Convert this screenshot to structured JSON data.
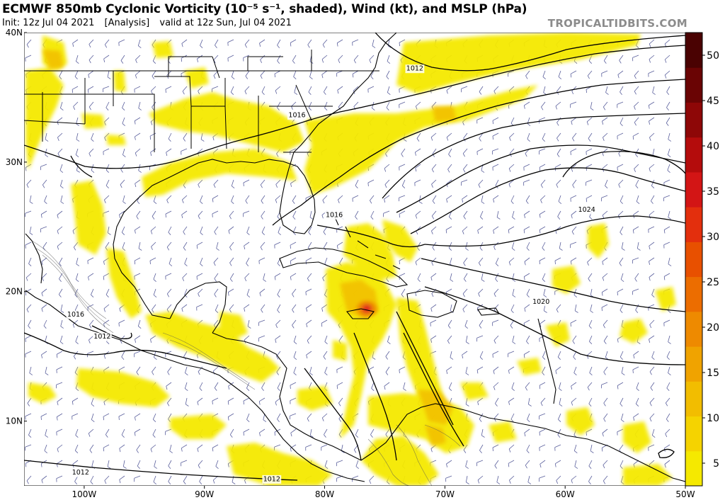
{
  "header": {
    "title": "ECMWF 850mb Cyclonic Vorticity (10⁻⁵ s⁻¹, shaded), Wind (kt), and MSLP (hPa)",
    "init": "Init: 12z Jul 04 2021",
    "analysis": "[Analysis]",
    "valid": "valid at 12z Sun, Jul 04 2021",
    "brand": "TROPICALTIDBITS.COM"
  },
  "map": {
    "lon_range": [
      -105,
      -50
    ],
    "lat_range": [
      5,
      40
    ],
    "lat_labels": [
      {
        "lat": 40,
        "label": "40N"
      },
      {
        "lat": 30,
        "label": "30N"
      },
      {
        "lat": 20,
        "label": "20N"
      },
      {
        "lat": 10,
        "label": "10N"
      }
    ],
    "lon_labels": [
      {
        "lon": -100,
        "label": "100W"
      },
      {
        "lon": -90,
        "label": "90W"
      },
      {
        "lon": -80,
        "label": "80W"
      },
      {
        "lon": -70,
        "label": "70W"
      },
      {
        "lon": -60,
        "label": "60W"
      },
      {
        "lon": -50,
        "label": "50W"
      }
    ],
    "isobar_labels": [
      {
        "text": "1012",
        "lon": -72.5,
        "lat": 37.2
      },
      {
        "text": "1016",
        "lon": -82.3,
        "lat": 33.6
      },
      {
        "text": "1016",
        "lon": -79.2,
        "lat": 25.9
      },
      {
        "text": "1024",
        "lon": -58.2,
        "lat": 26.3
      },
      {
        "text": "1020",
        "lon": -62.0,
        "lat": 19.2
      },
      {
        "text": "1016",
        "lon": -100.7,
        "lat": 18.2
      },
      {
        "text": "1012",
        "lon": -98.5,
        "lat": 16.5
      },
      {
        "text": "1012",
        "lon": -100.3,
        "lat": 6.0
      },
      {
        "text": "1012",
        "lon": -84.4,
        "lat": 5.5
      }
    ],
    "colors": {
      "shade_light": "#f5e900",
      "shade_mid": "#f2c200",
      "shade_high": "#ee8a00",
      "vortex_max": "#e0201a",
      "coast": "#000000",
      "barb": "#5a5f9c",
      "isobar": "#000000"
    }
  },
  "colorbar": {
    "ticks": [
      "50",
      "45",
      "40",
      "35",
      "30",
      "25",
      "20",
      "15",
      "10",
      "5"
    ],
    "min": 2.5,
    "max": 52.5,
    "colors": [
      "#f5e900",
      "#f5d300",
      "#f2bd00",
      "#f0a300",
      "#ee8a00",
      "#ec6d00",
      "#e85000",
      "#e32f0d",
      "#d31515",
      "#b40c0c",
      "#8e0707",
      "#6a0404",
      "#4a0202"
    ]
  }
}
